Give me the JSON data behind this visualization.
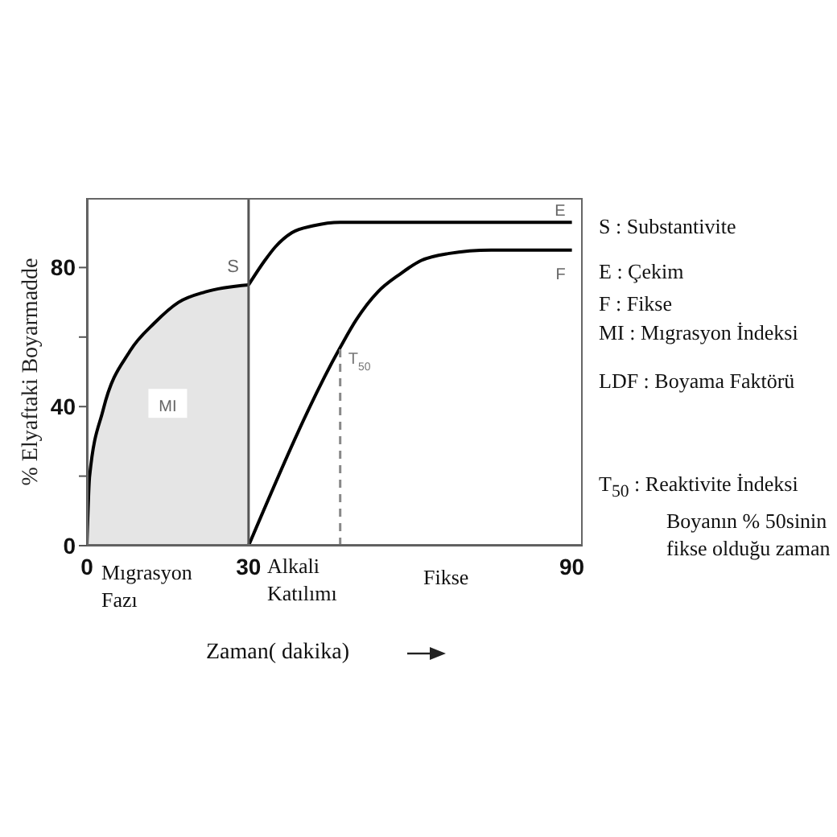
{
  "chart_data": {
    "type": "line",
    "xlabel": "Zaman( dakika)",
    "ylabel": "% Elyaftaki Boyarmadde",
    "xlim": [
      0,
      92
    ],
    "xticks": [
      0,
      30,
      90
    ],
    "ylim": [
      0,
      100
    ],
    "yticks": [
      0,
      {
        "value": 20,
        "label": null
      },
      40,
      {
        "value": 60,
        "label": null
      },
      80
    ],
    "series": [
      {
        "type": "area",
        "color": "#000000",
        "x": [
          0,
          0.5,
          3,
          8,
          12.5,
          17,
          22,
          30
        ],
        "values": [
          0,
          20,
          39,
          56,
          64,
          70,
          73,
          75
        ]
      },
      {
        "name": "E",
        "color": "#000000",
        "x": [
          30,
          33,
          35,
          38,
          42,
          47,
          55,
          90
        ],
        "values": [
          75,
          82,
          86,
          90,
          92,
          93,
          93,
          93
        ]
      },
      {
        "name": "F",
        "color": "#000000",
        "x": [
          30,
          47,
          50,
          54,
          58,
          62,
          67,
          75,
          90
        ],
        "values": [
          0,
          57,
          65,
          73,
          78,
          82,
          84,
          85,
          85
        ]
      }
    ],
    "ref_lines": [
      {
        "axis": "x",
        "value": 30,
        "color": "#555555"
      },
      {
        "axis": "x",
        "value": 47,
        "label": "T$_{50}$",
        "line_style": "dashed",
        "color": "#888888"
      }
    ],
    "annotations": [
      {
        "text": "MI",
        "x": 15,
        "y": 40
      },
      {
        "text": "S",
        "x": 30,
        "y": 75
      },
      "Mıgrasyon\nFazı",
      "Alkali\nKatılımı",
      "Fikse",
      "S : Substantivite",
      "E : Çekim",
      "F : Fikse",
      "MI : Mıgrasyon İndeksi",
      "LDF : Boyama Faktörü",
      "T$_{50}$ :  Reaktivite İndeksi\nBoyanın % 50sinin\nfikse olduğu zaman"
    ],
    "grid": false,
    "marker": "none",
    "line_style": "solid"
  }
}
